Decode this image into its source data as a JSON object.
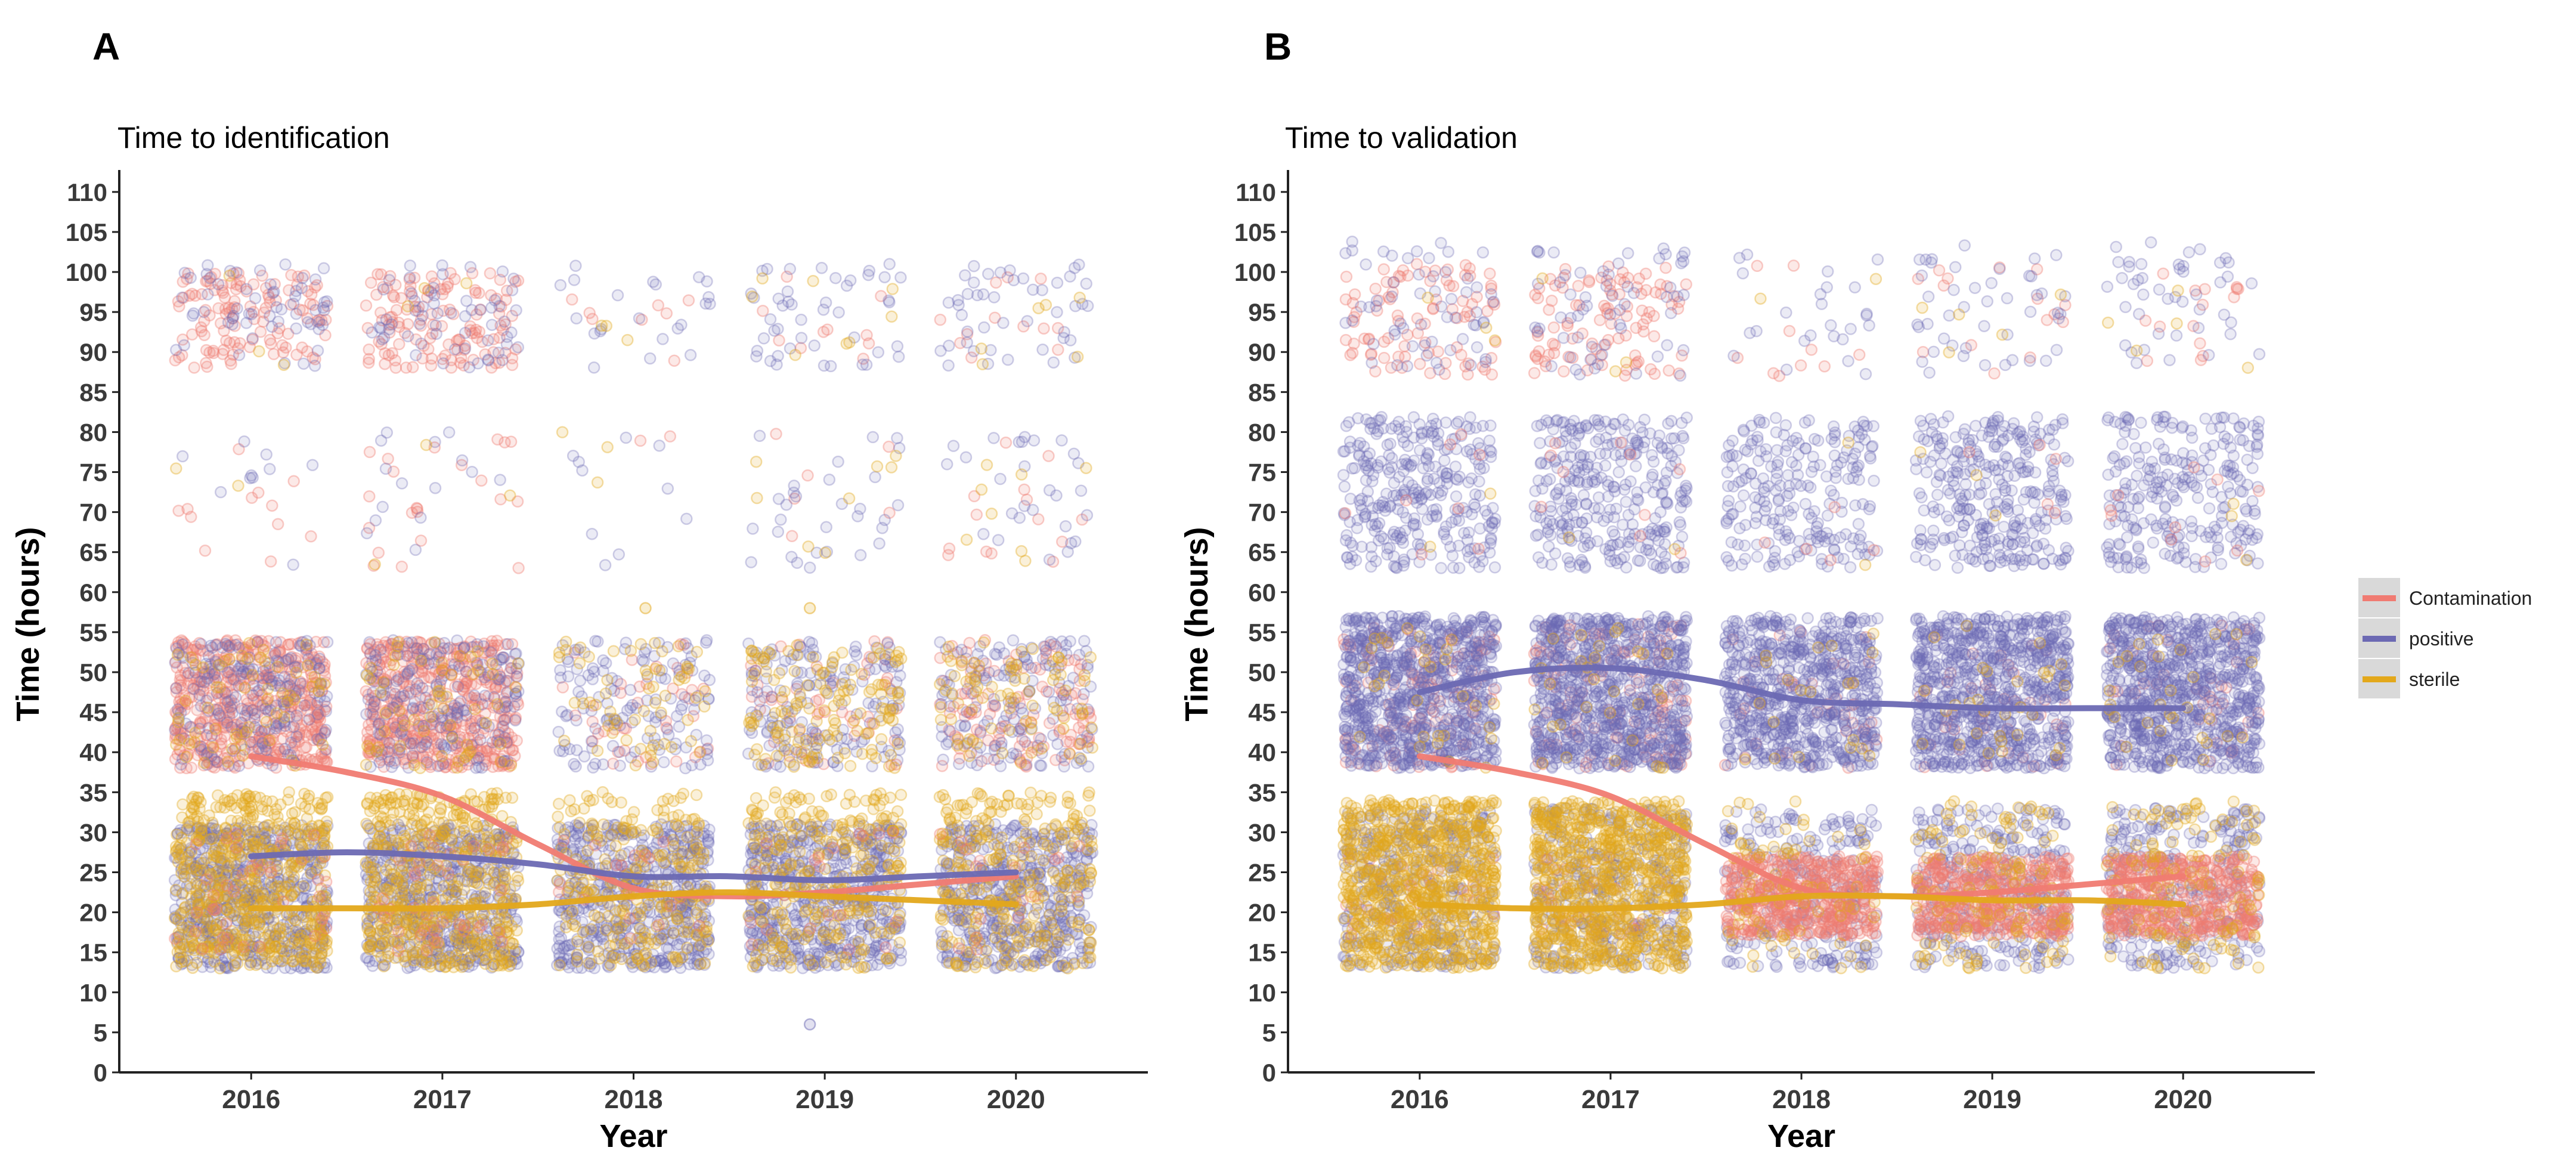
{
  "figure": {
    "legend": {
      "items": [
        "Contamination",
        "positive",
        "sterile"
      ],
      "colors": [
        "#f07b72",
        "#6c69b3",
        "#e3a81b"
      ],
      "placement": "right"
    }
  },
  "chart_data": [
    {
      "type": "scatter",
      "panel_label": "A",
      "title": "Time to identification",
      "xlabel": "Year",
      "ylabel": "Time (hours)",
      "categories": [
        "2016",
        "2017",
        "2018",
        "2019",
        "2020"
      ],
      "ylim": [
        0,
        112
      ],
      "yticks": [
        0,
        5,
        10,
        15,
        20,
        25,
        30,
        35,
        40,
        45,
        50,
        55,
        60,
        65,
        70,
        75,
        80,
        85,
        90,
        95,
        100,
        105,
        110
      ],
      "grid": false,
      "point_clusters": [
        {
          "name": "Contamination",
          "band": [
            88,
            100
          ],
          "counts": [
            120,
            130,
            8,
            10,
            12
          ]
        },
        {
          "name": "positive",
          "band": [
            88,
            101
          ],
          "counts": [
            60,
            60,
            22,
            45,
            45
          ]
        },
        {
          "name": "sterile",
          "band": [
            88,
            100
          ],
          "counts": [
            3,
            3,
            3,
            8,
            6
          ]
        },
        {
          "name": "Contamination",
          "band": [
            63,
            80
          ],
          "counts": [
            12,
            22,
            2,
            6,
            14
          ]
        },
        {
          "name": "positive",
          "band": [
            63,
            80
          ],
          "counts": [
            10,
            15,
            10,
            30,
            28
          ]
        },
        {
          "name": "sterile",
          "band": [
            63,
            80
          ],
          "counts": [
            2,
            3,
            3,
            8,
            8
          ]
        },
        {
          "name": "Contamination",
          "band": [
            38,
            54
          ],
          "counts": [
            500,
            480,
            40,
            50,
            120
          ]
        },
        {
          "name": "positive",
          "band": [
            38,
            54
          ],
          "counts": [
            200,
            200,
            130,
            160,
            150
          ]
        },
        {
          "name": "sterile",
          "band": [
            38,
            54
          ],
          "counts": [
            60,
            60,
            60,
            140,
            80
          ]
        },
        {
          "name": "positive",
          "band": [
            13,
            31
          ],
          "counts": [
            600,
            550,
            550,
            550,
            500
          ]
        },
        {
          "name": "sterile",
          "band": [
            13,
            35
          ],
          "counts": [
            550,
            500,
            250,
            280,
            280
          ]
        },
        {
          "name": "Contamination",
          "band": [
            15,
            30
          ],
          "counts": [
            40,
            40,
            20,
            20,
            20
          ]
        }
      ],
      "outliers": [
        {
          "name": "positive",
          "x": "2019",
          "y": 6
        },
        {
          "name": "sterile",
          "x": "2018",
          "y": 58
        },
        {
          "name": "sterile",
          "x": "2019",
          "y": 58
        }
      ],
      "series": [
        {
          "name": "Contamination",
          "x": [
            "2016",
            "2016.5",
            "2017",
            "2017.5",
            "2018",
            "2018.5",
            "2019",
            "2019.5",
            "2020"
          ],
          "values": [
            39.5,
            37.5,
            34.5,
            28.5,
            23.0,
            22.0,
            22.5,
            23.5,
            24.5
          ]
        },
        {
          "name": "positive",
          "x": [
            "2016",
            "2016.5",
            "2017",
            "2017.5",
            "2018",
            "2018.5",
            "2019",
            "2019.5",
            "2020"
          ],
          "values": [
            27.0,
            27.5,
            27.0,
            26.0,
            24.5,
            24.5,
            24.0,
            24.5,
            25.0
          ]
        },
        {
          "name": "sterile",
          "x": [
            "2016",
            "2016.5",
            "2017",
            "2017.5",
            "2018",
            "2018.5",
            "2019",
            "2019.5",
            "2020"
          ],
          "values": [
            20.5,
            20.5,
            20.5,
            21.0,
            22.0,
            22.5,
            22.0,
            21.5,
            21.0
          ]
        }
      ]
    },
    {
      "type": "scatter",
      "panel_label": "B",
      "title": "Time to validation",
      "xlabel": "Year",
      "ylabel": "Time (hours)",
      "categories": [
        "2016",
        "2017",
        "2018",
        "2019",
        "2020"
      ],
      "ylim": [
        0,
        112
      ],
      "yticks": [
        0,
        5,
        10,
        15,
        20,
        25,
        30,
        35,
        40,
        45,
        50,
        55,
        60,
        65,
        70,
        75,
        80,
        85,
        90,
        95,
        100,
        105,
        110
      ],
      "grid": false,
      "point_clusters": [
        {
          "name": "Contamination",
          "band": [
            87,
            101
          ],
          "counts": [
            90,
            100,
            10,
            15,
            15
          ]
        },
        {
          "name": "positive",
          "band": [
            87,
            104
          ],
          "counts": [
            60,
            60,
            25,
            45,
            45
          ]
        },
        {
          "name": "sterile",
          "band": [
            87,
            101
          ],
          "counts": [
            3,
            3,
            2,
            5,
            5
          ]
        },
        {
          "name": "positive",
          "band": [
            63,
            82
          ],
          "counts": [
            300,
            300,
            220,
            300,
            250
          ]
        },
        {
          "name": "Contamination",
          "band": [
            63,
            80
          ],
          "counts": [
            8,
            10,
            5,
            5,
            10
          ]
        },
        {
          "name": "sterile",
          "band": [
            63,
            80
          ],
          "counts": [
            2,
            2,
            2,
            3,
            3
          ]
        },
        {
          "name": "Contamination",
          "band": [
            38,
            56
          ],
          "counts": [
            120,
            120,
            40,
            40,
            40
          ]
        },
        {
          "name": "positive",
          "band": [
            38,
            57
          ],
          "counts": [
            850,
            850,
            700,
            800,
            800
          ]
        },
        {
          "name": "sterile",
          "band": [
            38,
            56
          ],
          "counts": [
            30,
            30,
            20,
            30,
            30
          ]
        },
        {
          "name": "positive",
          "band": [
            13,
            33
          ],
          "counts": [
            350,
            350,
            250,
            300,
            280
          ]
        },
        {
          "name": "Contamination",
          "band": [
            17,
            27
          ],
          "counts": [
            30,
            30,
            500,
            450,
            450
          ]
        },
        {
          "name": "sterile",
          "band": [
            13,
            34
          ],
          "counts": [
            800,
            800,
            80,
            120,
            120
          ]
        }
      ],
      "series": [
        {
          "name": "Contamination",
          "x": [
            "2016",
            "2016.5",
            "2017",
            "2017.5",
            "2018",
            "2018.5",
            "2019",
            "2019.5",
            "2020"
          ],
          "values": [
            39.5,
            37.5,
            34.5,
            28.5,
            23.0,
            22.0,
            22.5,
            23.5,
            24.5
          ]
        },
        {
          "name": "positive",
          "x": [
            "2016",
            "2016.5",
            "2017",
            "2017.5",
            "2018",
            "2018.5",
            "2019",
            "2019.5",
            "2020"
          ],
          "values": [
            47.5,
            50.0,
            50.5,
            49.0,
            46.5,
            46.0,
            45.5,
            45.5,
            45.5
          ]
        },
        {
          "name": "sterile",
          "x": [
            "2016",
            "2016.5",
            "2017",
            "2017.5",
            "2018",
            "2018.5",
            "2019",
            "2019.5",
            "2020"
          ],
          "values": [
            21.0,
            20.5,
            20.5,
            21.0,
            22.0,
            22.0,
            21.5,
            21.5,
            21.0
          ]
        }
      ]
    }
  ]
}
